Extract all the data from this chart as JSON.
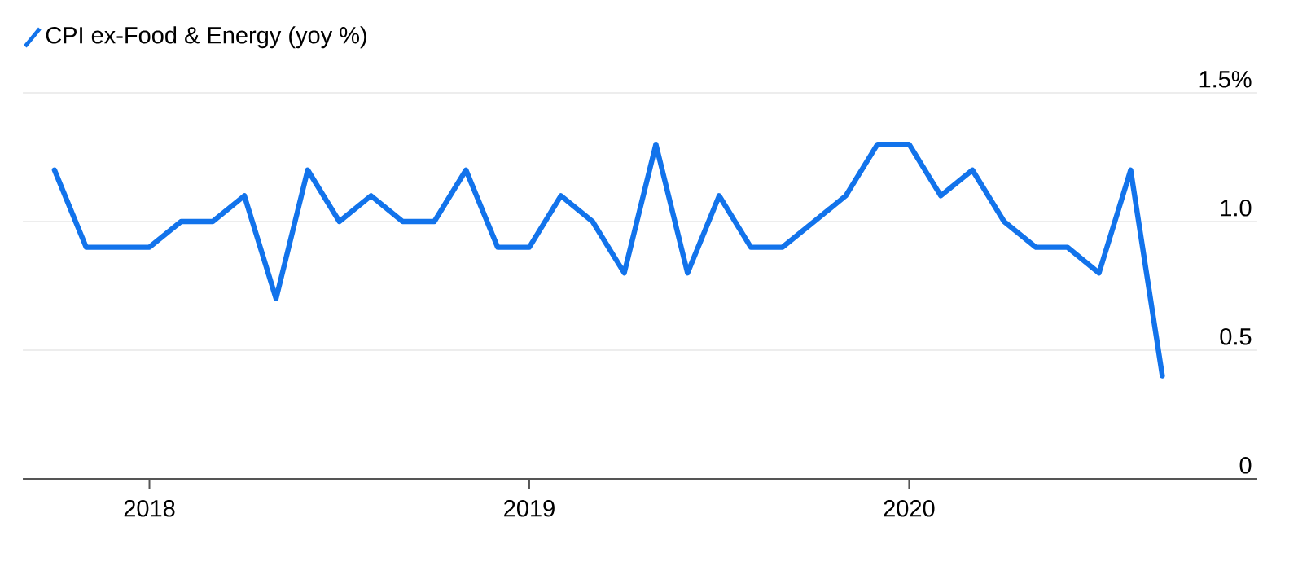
{
  "chart_data": {
    "type": "line",
    "x": [
      "2017-10",
      "2017-11",
      "2017-12",
      "2018-01",
      "2018-02",
      "2018-03",
      "2018-04",
      "2018-05",
      "2018-06",
      "2018-07",
      "2018-08",
      "2018-09",
      "2018-10",
      "2018-11",
      "2018-12",
      "2019-01",
      "2019-02",
      "2019-03",
      "2019-04",
      "2019-05",
      "2019-06",
      "2019-07",
      "2019-08",
      "2019-09",
      "2019-10",
      "2019-11",
      "2019-12",
      "2020-01",
      "2020-02",
      "2020-03",
      "2020-04",
      "2020-05",
      "2020-06",
      "2020-07",
      "2020-08",
      "2020-09"
    ],
    "series": [
      {
        "name": "CPI ex-Food & Energy (yoy %)",
        "color": "#1273eb",
        "values": [
          1.2,
          0.9,
          0.9,
          0.9,
          1.0,
          1.0,
          1.1,
          0.7,
          1.2,
          1.0,
          1.1,
          1.0,
          1.0,
          1.2,
          0.9,
          0.9,
          1.1,
          1.0,
          0.8,
          1.3,
          0.8,
          1.1,
          0.9,
          0.9,
          1.0,
          1.1,
          1.3,
          1.3,
          1.1,
          1.2,
          1.0,
          0.9,
          0.9,
          0.8,
          1.2,
          0.4
        ]
      }
    ],
    "xlim": [
      "2017-09",
      "2020-12"
    ],
    "xticks": [
      "2018",
      "2019",
      "2020"
    ],
    "ylim": [
      0,
      1.5
    ],
    "yticks": [
      0,
      0.5,
      {
        "value": 1.0,
        "label": "1.0"
      },
      {
        "value": 1.5,
        "label": "1.5%"
      }
    ],
    "grid": "y",
    "legend": "top left",
    "line_style": "solid"
  }
}
